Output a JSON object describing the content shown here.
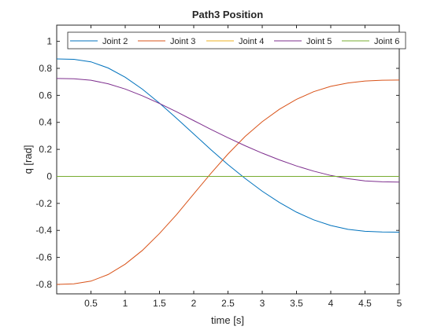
{
  "chart_data": {
    "type": "line",
    "title": "Path3 Position",
    "xlabel": "time [s]",
    "ylabel": "q [rad]",
    "xlim": [
      0,
      5
    ],
    "ylim": [
      -0.87,
      1.12
    ],
    "xticks": [
      0.5,
      1,
      1.5,
      2,
      2.5,
      3,
      3.5,
      4,
      4.5,
      5
    ],
    "xtick_labels": [
      "0.5",
      "1",
      "1.5",
      "2",
      "2.5",
      "3",
      "3.5",
      "4",
      "4.5",
      "5"
    ],
    "yticks": [
      -0.8,
      -0.6,
      -0.4,
      -0.2,
      0,
      0.2,
      0.4,
      0.6,
      0.8,
      1
    ],
    "ytick_labels": [
      "-0.8",
      "-0.6",
      "-0.4",
      "-0.2",
      "0",
      "0.2",
      "0.4",
      "0.6",
      "0.8",
      "1"
    ],
    "grid": false,
    "legend_placement": "top, horizontal",
    "x": [
      0,
      0.25,
      0.5,
      0.75,
      1,
      1.25,
      1.5,
      1.75,
      2,
      2.25,
      2.5,
      2.75,
      3,
      3.25,
      3.5,
      3.75,
      4,
      4.25,
      4.5,
      4.75,
      5
    ],
    "series": [
      {
        "name": "Joint 2",
        "color": "#0072BD",
        "values": [
          0.87,
          0.867,
          0.848,
          0.803,
          0.734,
          0.646,
          0.542,
          0.43,
          0.314,
          0.198,
          0.087,
          -0.015,
          -0.11,
          -0.193,
          -0.265,
          -0.322,
          -0.364,
          -0.392,
          -0.407,
          -0.412,
          -0.413
        ]
      },
      {
        "name": "Joint 3",
        "color": "#D95319",
        "values": [
          -0.8,
          -0.796,
          -0.776,
          -0.727,
          -0.65,
          -0.548,
          -0.423,
          -0.283,
          -0.13,
          0.022,
          0.166,
          0.296,
          0.405,
          0.497,
          0.571,
          0.627,
          0.667,
          0.692,
          0.706,
          0.712,
          0.713
        ]
      },
      {
        "name": "Joint 4",
        "color": "#EDB120",
        "values": [
          0,
          0,
          0,
          0,
          0,
          0,
          0,
          0,
          0,
          0,
          0,
          0,
          0,
          0,
          0,
          0,
          0,
          0,
          0,
          0,
          0
        ]
      },
      {
        "name": "Joint 5",
        "color": "#7E2F8E",
        "values": [
          0.725,
          0.723,
          0.712,
          0.686,
          0.647,
          0.597,
          0.54,
          0.478,
          0.413,
          0.348,
          0.286,
          0.227,
          0.172,
          0.122,
          0.077,
          0.039,
          0.007,
          -0.017,
          -0.033,
          -0.04,
          -0.042
        ]
      },
      {
        "name": "Joint 6",
        "color": "#77AC30",
        "values": [
          0,
          0,
          0,
          0,
          0,
          0,
          0,
          0,
          0,
          0,
          0,
          0,
          0,
          0,
          0,
          0,
          0,
          0,
          0,
          0,
          0
        ]
      }
    ]
  }
}
